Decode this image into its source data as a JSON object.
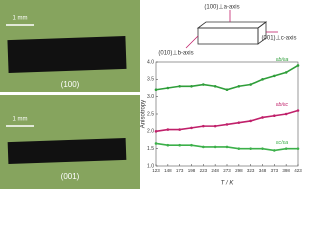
{
  "photos": [
    {
      "scale": "1 mm",
      "label": "(100)"
    },
    {
      "scale": "1 mm",
      "label": "(001)"
    }
  ],
  "diagram": {
    "labels": [
      "(100)⊥a-axis",
      "(010)⊥b-axis",
      "(001)⊥c-axis"
    ]
  },
  "chart_data": {
    "type": "line",
    "y_label": "Anisotropy",
    "x_label": "T / K",
    "x": [
      123,
      148,
      173,
      198,
      223,
      248,
      273,
      298,
      323,
      348,
      373,
      398,
      423
    ],
    "xlim": [
      123,
      423
    ],
    "xticks": [
      123,
      148,
      173,
      198,
      223,
      248,
      273,
      298,
      323,
      348,
      373,
      398,
      423
    ],
    "ylim": [
      1.0,
      4.0
    ],
    "yticks": [
      {
        "value": 1.0,
        "label": "1.0"
      },
      1.5,
      {
        "value": 2.0,
        "label": "2.0"
      },
      2.5,
      {
        "value": 3.0,
        "label": "3.0"
      },
      3.5,
      {
        "value": 4.0,
        "label": "4.0"
      }
    ],
    "series": [
      {
        "name": "εb/εa",
        "color": "#2f9e3a",
        "values": [
          3.2,
          3.25,
          3.3,
          3.3,
          3.35,
          3.3,
          3.2,
          3.3,
          3.35,
          3.5,
          3.6,
          3.7,
          3.9
        ]
      },
      {
        "name": "εb/εc",
        "color": "#c0206a",
        "values": [
          2.0,
          2.05,
          2.05,
          2.1,
          2.15,
          2.15,
          2.2,
          2.25,
          2.3,
          2.4,
          2.45,
          2.5,
          2.6
        ]
      },
      {
        "name": "εc/εa",
        "color": "#3cb04a",
        "values": [
          1.65,
          1.6,
          1.6,
          1.6,
          1.55,
          1.55,
          1.55,
          1.5,
          1.5,
          1.5,
          1.45,
          1.5,
          1.5
        ]
      }
    ]
  }
}
